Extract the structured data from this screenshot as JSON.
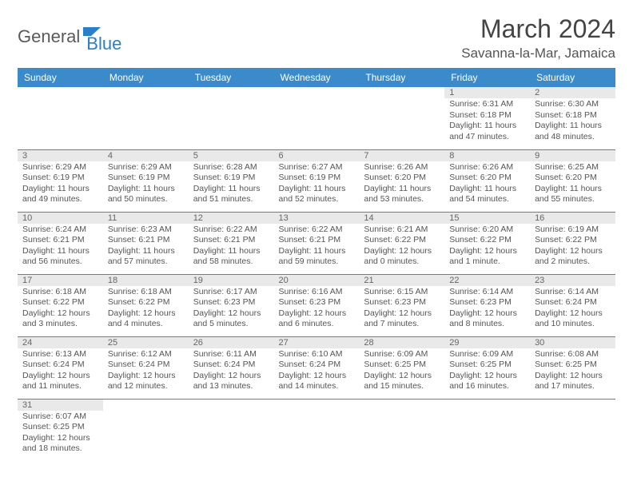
{
  "logo": {
    "part1": "General",
    "part2": "Blue"
  },
  "title": "March 2024",
  "location": "Savanna-la-Mar, Jamaica",
  "colors": {
    "header_bg": "#3b8bca",
    "header_text": "#ffffff",
    "daynum_bg": "#e9e9e9",
    "row_border": "#3b8bca",
    "logo_gray": "#5a5a5a",
    "logo_blue": "#2a7fc9"
  },
  "day_headers": [
    "Sunday",
    "Monday",
    "Tuesday",
    "Wednesday",
    "Thursday",
    "Friday",
    "Saturday"
  ],
  "weeks": [
    [
      {
        "blank": true
      },
      {
        "blank": true
      },
      {
        "blank": true
      },
      {
        "blank": true
      },
      {
        "blank": true
      },
      {
        "num": "1",
        "sunrise": "Sunrise: 6:31 AM",
        "sunset": "Sunset: 6:18 PM",
        "daylight": "Daylight: 11 hours and 47 minutes."
      },
      {
        "num": "2",
        "sunrise": "Sunrise: 6:30 AM",
        "sunset": "Sunset: 6:18 PM",
        "daylight": "Daylight: 11 hours and 48 minutes."
      }
    ],
    [
      {
        "num": "3",
        "sunrise": "Sunrise: 6:29 AM",
        "sunset": "Sunset: 6:19 PM",
        "daylight": "Daylight: 11 hours and 49 minutes."
      },
      {
        "num": "4",
        "sunrise": "Sunrise: 6:29 AM",
        "sunset": "Sunset: 6:19 PM",
        "daylight": "Daylight: 11 hours and 50 minutes."
      },
      {
        "num": "5",
        "sunrise": "Sunrise: 6:28 AM",
        "sunset": "Sunset: 6:19 PM",
        "daylight": "Daylight: 11 hours and 51 minutes."
      },
      {
        "num": "6",
        "sunrise": "Sunrise: 6:27 AM",
        "sunset": "Sunset: 6:19 PM",
        "daylight": "Daylight: 11 hours and 52 minutes."
      },
      {
        "num": "7",
        "sunrise": "Sunrise: 6:26 AM",
        "sunset": "Sunset: 6:20 PM",
        "daylight": "Daylight: 11 hours and 53 minutes."
      },
      {
        "num": "8",
        "sunrise": "Sunrise: 6:26 AM",
        "sunset": "Sunset: 6:20 PM",
        "daylight": "Daylight: 11 hours and 54 minutes."
      },
      {
        "num": "9",
        "sunrise": "Sunrise: 6:25 AM",
        "sunset": "Sunset: 6:20 PM",
        "daylight": "Daylight: 11 hours and 55 minutes."
      }
    ],
    [
      {
        "num": "10",
        "sunrise": "Sunrise: 6:24 AM",
        "sunset": "Sunset: 6:21 PM",
        "daylight": "Daylight: 11 hours and 56 minutes."
      },
      {
        "num": "11",
        "sunrise": "Sunrise: 6:23 AM",
        "sunset": "Sunset: 6:21 PM",
        "daylight": "Daylight: 11 hours and 57 minutes."
      },
      {
        "num": "12",
        "sunrise": "Sunrise: 6:22 AM",
        "sunset": "Sunset: 6:21 PM",
        "daylight": "Daylight: 11 hours and 58 minutes."
      },
      {
        "num": "13",
        "sunrise": "Sunrise: 6:22 AM",
        "sunset": "Sunset: 6:21 PM",
        "daylight": "Daylight: 11 hours and 59 minutes."
      },
      {
        "num": "14",
        "sunrise": "Sunrise: 6:21 AM",
        "sunset": "Sunset: 6:22 PM",
        "daylight": "Daylight: 12 hours and 0 minutes."
      },
      {
        "num": "15",
        "sunrise": "Sunrise: 6:20 AM",
        "sunset": "Sunset: 6:22 PM",
        "daylight": "Daylight: 12 hours and 1 minute."
      },
      {
        "num": "16",
        "sunrise": "Sunrise: 6:19 AM",
        "sunset": "Sunset: 6:22 PM",
        "daylight": "Daylight: 12 hours and 2 minutes."
      }
    ],
    [
      {
        "num": "17",
        "sunrise": "Sunrise: 6:18 AM",
        "sunset": "Sunset: 6:22 PM",
        "daylight": "Daylight: 12 hours and 3 minutes."
      },
      {
        "num": "18",
        "sunrise": "Sunrise: 6:18 AM",
        "sunset": "Sunset: 6:22 PM",
        "daylight": "Daylight: 12 hours and 4 minutes."
      },
      {
        "num": "19",
        "sunrise": "Sunrise: 6:17 AM",
        "sunset": "Sunset: 6:23 PM",
        "daylight": "Daylight: 12 hours and 5 minutes."
      },
      {
        "num": "20",
        "sunrise": "Sunrise: 6:16 AM",
        "sunset": "Sunset: 6:23 PM",
        "daylight": "Daylight: 12 hours and 6 minutes."
      },
      {
        "num": "21",
        "sunrise": "Sunrise: 6:15 AM",
        "sunset": "Sunset: 6:23 PM",
        "daylight": "Daylight: 12 hours and 7 minutes."
      },
      {
        "num": "22",
        "sunrise": "Sunrise: 6:14 AM",
        "sunset": "Sunset: 6:23 PM",
        "daylight": "Daylight: 12 hours and 8 minutes."
      },
      {
        "num": "23",
        "sunrise": "Sunrise: 6:14 AM",
        "sunset": "Sunset: 6:24 PM",
        "daylight": "Daylight: 12 hours and 10 minutes."
      }
    ],
    [
      {
        "num": "24",
        "sunrise": "Sunrise: 6:13 AM",
        "sunset": "Sunset: 6:24 PM",
        "daylight": "Daylight: 12 hours and 11 minutes."
      },
      {
        "num": "25",
        "sunrise": "Sunrise: 6:12 AM",
        "sunset": "Sunset: 6:24 PM",
        "daylight": "Daylight: 12 hours and 12 minutes."
      },
      {
        "num": "26",
        "sunrise": "Sunrise: 6:11 AM",
        "sunset": "Sunset: 6:24 PM",
        "daylight": "Daylight: 12 hours and 13 minutes."
      },
      {
        "num": "27",
        "sunrise": "Sunrise: 6:10 AM",
        "sunset": "Sunset: 6:24 PM",
        "daylight": "Daylight: 12 hours and 14 minutes."
      },
      {
        "num": "28",
        "sunrise": "Sunrise: 6:09 AM",
        "sunset": "Sunset: 6:25 PM",
        "daylight": "Daylight: 12 hours and 15 minutes."
      },
      {
        "num": "29",
        "sunrise": "Sunrise: 6:09 AM",
        "sunset": "Sunset: 6:25 PM",
        "daylight": "Daylight: 12 hours and 16 minutes."
      },
      {
        "num": "30",
        "sunrise": "Sunrise: 6:08 AM",
        "sunset": "Sunset: 6:25 PM",
        "daylight": "Daylight: 12 hours and 17 minutes."
      }
    ],
    [
      {
        "num": "31",
        "sunrise": "Sunrise: 6:07 AM",
        "sunset": "Sunset: 6:25 PM",
        "daylight": "Daylight: 12 hours and 18 minutes."
      },
      {
        "blank": true
      },
      {
        "blank": true
      },
      {
        "blank": true
      },
      {
        "blank": true
      },
      {
        "blank": true
      },
      {
        "blank": true
      }
    ]
  ]
}
